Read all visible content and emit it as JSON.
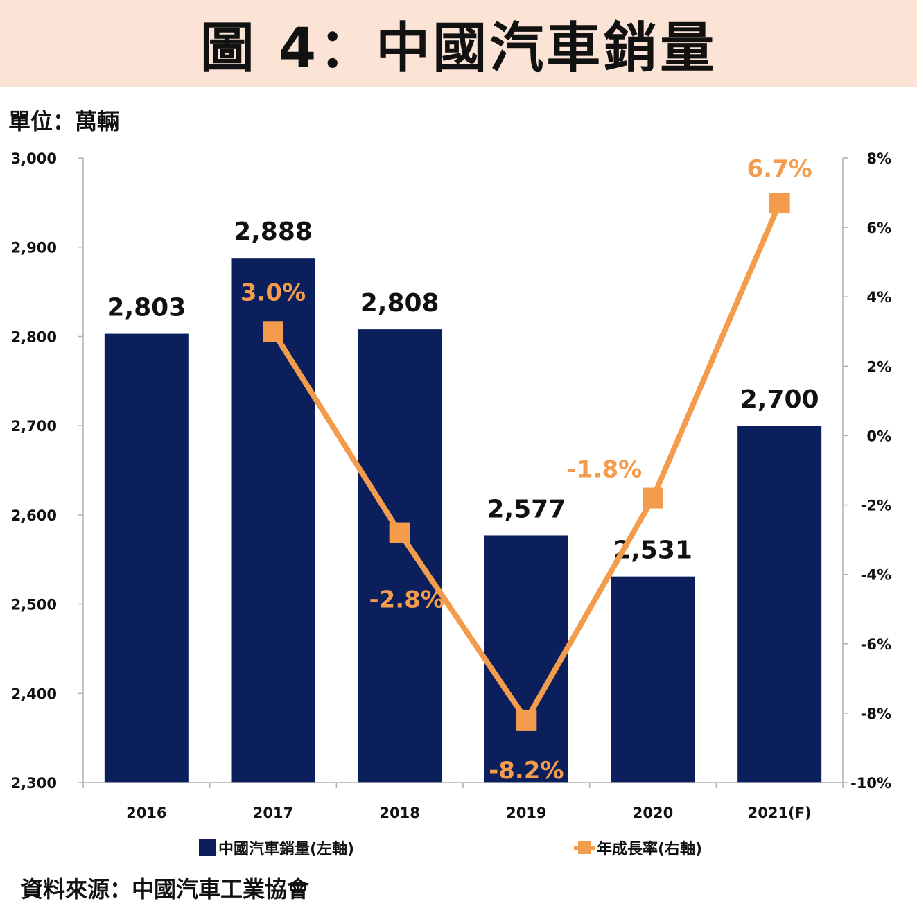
{
  "title": "圖 4：中國汽車銷量",
  "unit_label": "單位：萬輛",
  "source": "資料來源：中國汽車工業協會",
  "colors": {
    "title_bg": "#fbe3d5",
    "bar": "#0b1f5c",
    "line": "#f39c4c",
    "axis": "#b0b0b0"
  },
  "chart_data": {
    "type": "bar",
    "categories": [
      "2016",
      "2017",
      "2018",
      "2019",
      "2020",
      "2021(F)"
    ],
    "series": [
      {
        "name": "中國汽車銷量(左軸)",
        "type": "bar",
        "axis": "left",
        "values": [
          2803,
          2888,
          2808,
          2577,
          2531,
          2700
        ],
        "labels": [
          "2,803",
          "2,888",
          "2,808",
          "2,577",
          "2,531",
          "2,700"
        ]
      },
      {
        "name": "年成長率(右軸)",
        "type": "line",
        "axis": "right",
        "values": [
          null,
          3.0,
          -2.8,
          -8.2,
          -1.8,
          6.7
        ],
        "labels": [
          null,
          "3.0%",
          "-2.8%",
          "-8.2%",
          "-1.8%",
          "6.7%"
        ]
      }
    ],
    "left_axis": {
      "ylim": [
        2300,
        3000
      ],
      "ticks": [
        "2,300",
        "2,400",
        "2,500",
        "2,600",
        "2,700",
        "2,800",
        "2,900",
        "3,000"
      ]
    },
    "right_axis": {
      "ylim": [
        -10,
        8
      ],
      "ticks": [
        "-10%",
        "-8%",
        "-6%",
        "-4%",
        "-2%",
        "0%",
        "2%",
        "4%",
        "6%",
        "8%"
      ]
    },
    "grid": false,
    "legend_position": "bottom"
  }
}
